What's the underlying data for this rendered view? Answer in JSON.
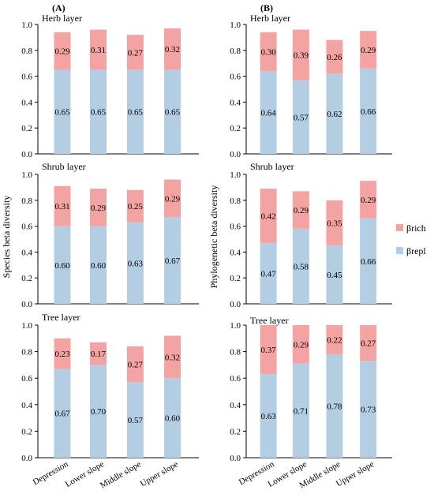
{
  "panel_labels": {
    "a": "(A)",
    "b": "(B)"
  },
  "ylabels": {
    "a": "Species beta diversity",
    "b": "Phylogenetic beta diversity"
  },
  "legend": [
    {
      "label": "βrich",
      "color": "#f4a3a3"
    },
    {
      "label": "βrepl",
      "color": "#b3cde3"
    }
  ],
  "colors": {
    "repl": "#b3cde3",
    "rich": "#f4a3a3"
  },
  "chart_data": [
    {
      "type": "bar",
      "stacked": true,
      "panel": "A",
      "title": "Herb layer",
      "categories": [
        "Depression",
        "Lower slope",
        "Middle slope",
        "Upper slope"
      ],
      "series": [
        {
          "name": "βrepl",
          "values": [
            0.65,
            0.65,
            0.65,
            0.65
          ]
        },
        {
          "name": "βrich",
          "values": [
            0.29,
            0.31,
            0.27,
            0.32
          ]
        }
      ],
      "ylim": [
        0,
        1.0
      ],
      "yticks": [
        "0.0",
        "0.2",
        "0.4",
        "0.6",
        "0.8",
        "1.0"
      ]
    },
    {
      "type": "bar",
      "stacked": true,
      "panel": "A",
      "title": "Shrub layer",
      "categories": [
        "Depression",
        "Lower slope",
        "Middle slope",
        "Upper slope"
      ],
      "series": [
        {
          "name": "βrepl",
          "values": [
            0.6,
            0.6,
            0.63,
            0.67
          ]
        },
        {
          "name": "βrich",
          "values": [
            0.31,
            0.29,
            0.25,
            0.29
          ]
        }
      ],
      "ylim": [
        0,
        1.0
      ],
      "yticks": [
        "0.0",
        "0.2",
        "0.4",
        "0.6",
        "0.8",
        "1.0"
      ]
    },
    {
      "type": "bar",
      "stacked": true,
      "panel": "A",
      "title": "Tree layer",
      "categories": [
        "Depression",
        "Lower slope",
        "Middle slope",
        "Upper slope"
      ],
      "series": [
        {
          "name": "βrepl",
          "values": [
            0.67,
            0.7,
            0.57,
            0.6
          ]
        },
        {
          "name": "βrich",
          "values": [
            0.23,
            0.17,
            0.27,
            0.32
          ]
        }
      ],
      "ylim": [
        0,
        1.0
      ],
      "yticks": [
        "0.0",
        "0.2",
        "0.4",
        "0.6",
        "0.8",
        "1.0"
      ]
    },
    {
      "type": "bar",
      "stacked": true,
      "panel": "B",
      "title": "Herb layer",
      "categories": [
        "Depression",
        "Lower slope",
        "Middle slope",
        "Upper slope"
      ],
      "series": [
        {
          "name": "βrepl",
          "values": [
            0.64,
            0.57,
            0.62,
            0.66
          ]
        },
        {
          "name": "βrich",
          "values": [
            0.3,
            0.39,
            0.26,
            0.29
          ]
        }
      ],
      "ylim": [
        0,
        1.0
      ],
      "yticks": [
        "0.0",
        "0.2",
        "0.4",
        "0.6",
        "0.8",
        "1.0"
      ]
    },
    {
      "type": "bar",
      "stacked": true,
      "panel": "B",
      "title": "Shrub layer",
      "categories": [
        "Depression",
        "Lower slope",
        "Middle slope",
        "Upper slope"
      ],
      "series": [
        {
          "name": "βrepl",
          "values": [
            0.47,
            0.58,
            0.45,
            0.66
          ]
        },
        {
          "name": "βrich",
          "values": [
            0.42,
            0.29,
            0.35,
            0.29
          ]
        }
      ],
      "ylim": [
        0,
        1.0
      ],
      "yticks": [
        "0.0",
        "0.2",
        "0.4",
        "0.6",
        "0.8",
        "1.0"
      ]
    },
    {
      "type": "bar",
      "stacked": true,
      "panel": "B",
      "title": "Tree layer",
      "categories": [
        "Depression",
        "Lower slope",
        "Middle slope",
        "Upper slope"
      ],
      "series": [
        {
          "name": "βrepl",
          "values": [
            0.63,
            0.71,
            0.78,
            0.73
          ]
        },
        {
          "name": "βrich",
          "values": [
            0.37,
            0.29,
            0.22,
            0.27
          ]
        }
      ],
      "ylim": [
        0,
        1.0
      ],
      "yticks": [
        "0.0",
        "0.2",
        "0.4",
        "0.6",
        "0.8",
        "1.0"
      ]
    }
  ]
}
